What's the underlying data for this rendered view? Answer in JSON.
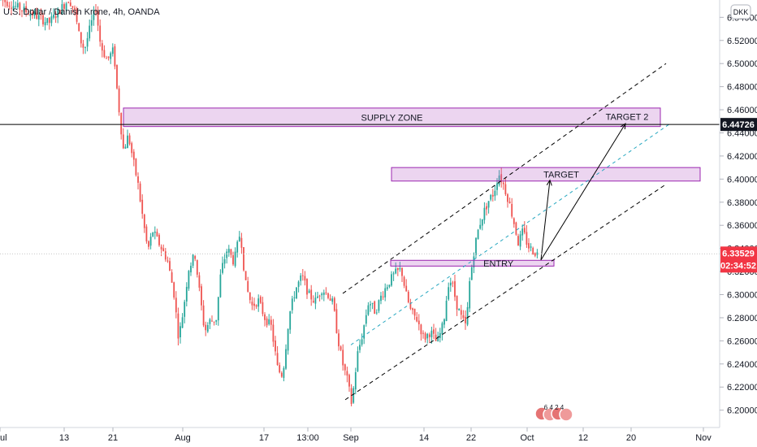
{
  "chart_data": {
    "type": "candlestick",
    "title": "U.S. Dollar / Danish Krone, 4h, OANDA",
    "currency_badge": "DKK",
    "ylim": [
      6.185,
      6.555
    ],
    "x_domain": [
      0,
      862
    ],
    "y_ticks": [
      "6.54000",
      "6.52000",
      "6.50000",
      "6.48000",
      "6.46000",
      "6.44000",
      "6.42000",
      "6.40000",
      "6.38000",
      "6.36000",
      "6.34000",
      "6.32000",
      "6.30000",
      "6.28000",
      "6.26000",
      "6.24000",
      "6.22000",
      "6.20000"
    ],
    "x_ticks": [
      {
        "label": "ul",
        "pos": 0
      },
      {
        "label": "13",
        "pos": 79
      },
      {
        "label": "21",
        "pos": 139
      },
      {
        "label": "Aug",
        "pos": 225
      },
      {
        "label": "17",
        "pos": 325
      },
      {
        "label": "13:00",
        "pos": 379
      },
      {
        "label": "Sep",
        "pos": 432
      },
      {
        "label": "14",
        "pos": 522
      },
      {
        "label": "22",
        "pos": 580
      },
      {
        "label": "Oct",
        "pos": 649
      },
      {
        "label": "12",
        "pos": 718
      },
      {
        "label": "20",
        "pos": 777
      },
      {
        "label": "Nov",
        "pos": 866
      }
    ],
    "price_line": {
      "value": 6.44726,
      "label": "6.44726",
      "color": "#000000"
    },
    "last_price": {
      "value": 6.33529,
      "label": "6.33529",
      "countdown": "02:34:52",
      "color": "#f23645"
    },
    "zones": [
      {
        "label": "SUPPLY ZONE",
        "x0": 152,
        "x1": 813,
        "y0": 6.4455,
        "y1": 6.4615
      },
      {
        "label": "TARGET",
        "x0": 482,
        "x1": 862,
        "y0": 6.3983,
        "y1": 6.41
      },
      {
        "label": "ENTRY",
        "x0": 481,
        "x1": 682,
        "y0": 6.3247,
        "y1": 6.3297
      }
    ],
    "channel": {
      "upper": [
        [
          422,
          6.301
        ],
        [
          820,
          6.5
        ]
      ],
      "middle": [
        [
          432,
          6.2565
        ],
        [
          826,
          6.4485
        ]
      ],
      "lower": [
        [
          425,
          6.209
        ],
        [
          820,
          6.3955
        ]
      ]
    },
    "arrows": [
      {
        "label": "TARGET",
        "from": [
          666,
          6.33
        ],
        "to": [
          677,
          6.399
        ]
      },
      {
        "label": "TARGET 2",
        "from": [
          666,
          6.33
        ],
        "to": [
          770,
          6.448
        ]
      }
    ],
    "annotation_text_labels": {
      "supply": "SUPPLY ZONE",
      "target": "TARGET",
      "target2": "TARGET 2",
      "entry": "ENTRY"
    },
    "events_badge": "6 4 2 4",
    "up_color": "#26a69a",
    "down_color": "#ef5350",
    "path": [
      [
        0,
        6.556
      ],
      [
        20,
        6.549
      ],
      [
        40,
        6.543
      ],
      [
        60,
        6.535
      ],
      [
        85,
        6.556
      ],
      [
        92,
        6.545
      ],
      [
        98,
        6.522
      ],
      [
        104,
        6.512
      ],
      [
        112,
        6.534
      ],
      [
        118,
        6.548
      ],
      [
        124,
        6.515
      ],
      [
        132,
        6.503
      ],
      [
        140,
        6.512
      ],
      [
        144,
        6.478
      ],
      [
        148,
        6.45
      ],
      [
        152,
        6.425
      ],
      [
        158,
        6.438
      ],
      [
        164,
        6.416
      ],
      [
        170,
        6.395
      ],
      [
        176,
        6.365
      ],
      [
        182,
        6.338
      ],
      [
        188,
        6.355
      ],
      [
        196,
        6.344
      ],
      [
        206,
        6.33
      ],
      [
        214,
        6.302
      ],
      [
        220,
        6.262
      ],
      [
        226,
        6.288
      ],
      [
        232,
        6.322
      ],
      [
        240,
        6.335
      ],
      [
        246,
        6.3
      ],
      [
        252,
        6.268
      ],
      [
        258,
        6.277
      ],
      [
        266,
        6.278
      ],
      [
        272,
        6.32
      ],
      [
        280,
        6.34
      ],
      [
        288,
        6.328
      ],
      [
        296,
        6.355
      ],
      [
        302,
        6.31
      ],
      [
        310,
        6.29
      ],
      [
        318,
        6.295
      ],
      [
        326,
        6.28
      ],
      [
        334,
        6.272
      ],
      [
        342,
        6.235
      ],
      [
        348,
        6.23
      ],
      [
        356,
        6.282
      ],
      [
        364,
        6.305
      ],
      [
        372,
        6.316
      ],
      [
        380,
        6.3
      ],
      [
        388,
        6.294
      ],
      [
        396,
        6.305
      ],
      [
        404,
        6.3
      ],
      [
        410,
        6.292
      ],
      [
        416,
        6.262
      ],
      [
        422,
        6.24
      ],
      [
        428,
        6.225
      ],
      [
        433,
        6.205
      ],
      [
        440,
        6.248
      ],
      [
        446,
        6.265
      ],
      [
        454,
        6.295
      ],
      [
        462,
        6.285
      ],
      [
        470,
        6.3
      ],
      [
        478,
        6.31
      ],
      [
        486,
        6.318
      ],
      [
        494,
        6.322
      ],
      [
        500,
        6.3
      ],
      [
        506,
        6.285
      ],
      [
        514,
        6.278
      ],
      [
        522,
        6.262
      ],
      [
        530,
        6.268
      ],
      [
        538,
        6.258
      ],
      [
        546,
        6.275
      ],
      [
        552,
        6.31
      ],
      [
        556,
        6.312
      ],
      [
        562,
        6.292
      ],
      [
        568,
        6.28
      ],
      [
        574,
        6.272
      ],
      [
        578,
        6.31
      ],
      [
        584,
        6.34
      ],
      [
        590,
        6.36
      ],
      [
        596,
        6.372
      ],
      [
        602,
        6.382
      ],
      [
        608,
        6.388
      ],
      [
        614,
        6.405
      ],
      [
        620,
        6.395
      ],
      [
        626,
        6.382
      ],
      [
        632,
        6.365
      ],
      [
        638,
        6.345
      ],
      [
        644,
        6.355
      ],
      [
        650,
        6.342
      ],
      [
        656,
        6.338
      ],
      [
        662,
        6.335
      ]
    ]
  }
}
